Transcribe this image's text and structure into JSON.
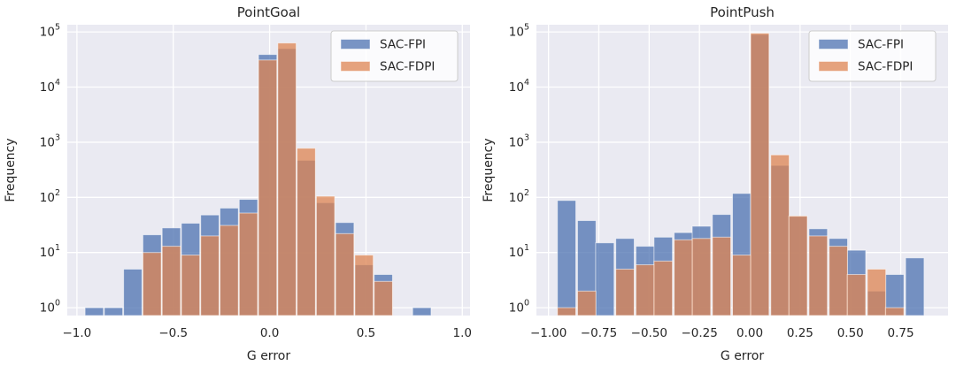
{
  "colors": {
    "series_blue": "#4C72B0",
    "series_orange": "#DD8452",
    "plot_background": "#EAEAF2",
    "gridline": "#FFFFFF",
    "text": "#262626",
    "figure_background": "#FFFFFF",
    "legend_background": "#FFFFFF",
    "legend_border": "#CCCCCC"
  },
  "chart_data": [
    {
      "type": "bar",
      "subtype": "overlaid-histogram",
      "title": "PointGoal",
      "xlabel": "G error",
      "ylabel": "Frequency",
      "yscale": "log",
      "grid": true,
      "legend_position": "upper right",
      "xlim": [
        -1.05,
        1.04
      ],
      "ylim": [
        0.72,
        135000
      ],
      "bin_width": 0.1,
      "bin_centers": [
        -0.91,
        -0.81,
        -0.71,
        -0.61,
        -0.51,
        -0.41,
        -0.31,
        -0.21,
        -0.11,
        -0.01,
        0.09,
        0.19,
        0.29,
        0.39,
        0.49,
        0.59,
        0.69,
        0.79
      ],
      "series": [
        {
          "name": "SAC-FPI",
          "color": "#4C72B0",
          "values": [
            1,
            1,
            5,
            21,
            28,
            34,
            48,
            64,
            92,
            39000,
            50000,
            470,
            80,
            35,
            6,
            4,
            0,
            1
          ]
        },
        {
          "name": "SAC-FDPI",
          "color": "#DD8452",
          "values": [
            0,
            0,
            0,
            10,
            13,
            9,
            20,
            31,
            52,
            31000,
            63000,
            780,
            105,
            22,
            9,
            3,
            0,
            0
          ]
        }
      ],
      "xticks": {
        "values": [
          -1.0,
          -0.5,
          0.0,
          0.5,
          1.0
        ],
        "labels": [
          "−1.0",
          "−0.5",
          "0.0",
          "0.5",
          "1.0"
        ]
      },
      "yticks": {
        "values": [
          1,
          10,
          100,
          1000,
          10000,
          100000
        ],
        "labels": [
          {
            "base": "10",
            "exp": "0"
          },
          {
            "base": "10",
            "exp": "1"
          },
          {
            "base": "10",
            "exp": "2"
          },
          {
            "base": "10",
            "exp": "3"
          },
          {
            "base": "10",
            "exp": "4"
          },
          {
            "base": "10",
            "exp": "5"
          }
        ]
      }
    },
    {
      "type": "bar",
      "subtype": "overlaid-histogram",
      "title": "PointPush",
      "xlabel": "G error",
      "ylabel": "Frequency",
      "yscale": "log",
      "grid": true,
      "legend_position": "upper right",
      "xlim": [
        -1.06,
        0.985
      ],
      "ylim": [
        0.72,
        135000
      ],
      "bin_width": 0.096,
      "bin_centers": [
        -0.91,
        -0.81,
        -0.72,
        -0.62,
        -0.52,
        -0.43,
        -0.33,
        -0.24,
        -0.14,
        -0.04,
        0.05,
        0.15,
        0.24,
        0.34,
        0.44,
        0.53,
        0.63,
        0.72,
        0.82
      ],
      "series": [
        {
          "name": "SAC-FPI",
          "color": "#4C72B0",
          "values": [
            88,
            38,
            15,
            18,
            13,
            19,
            23,
            30,
            49,
            118,
            90000,
            380,
            45,
            27,
            18,
            11,
            2,
            4,
            8
          ]
        },
        {
          "name": "SAC-FDPI",
          "color": "#DD8452",
          "values": [
            1,
            2,
            0,
            5,
            6,
            7,
            17,
            18,
            19,
            9,
            95000,
            590,
            46,
            20,
            13,
            4,
            5,
            1,
            0
          ]
        }
      ],
      "xticks": {
        "values": [
          -1.0,
          -0.75,
          -0.5,
          -0.25,
          0.0,
          0.25,
          0.5,
          0.75
        ],
        "labels": [
          "−1.00",
          "−0.75",
          "−0.50",
          "−0.25",
          "0.00",
          "0.25",
          "0.50",
          "0.75"
        ]
      },
      "yticks": {
        "values": [
          1,
          10,
          100,
          1000,
          10000,
          100000
        ],
        "labels": [
          {
            "base": "10",
            "exp": "0"
          },
          {
            "base": "10",
            "exp": "1"
          },
          {
            "base": "10",
            "exp": "2"
          },
          {
            "base": "10",
            "exp": "3"
          },
          {
            "base": "10",
            "exp": "4"
          },
          {
            "base": "10",
            "exp": "5"
          }
        ]
      }
    }
  ]
}
